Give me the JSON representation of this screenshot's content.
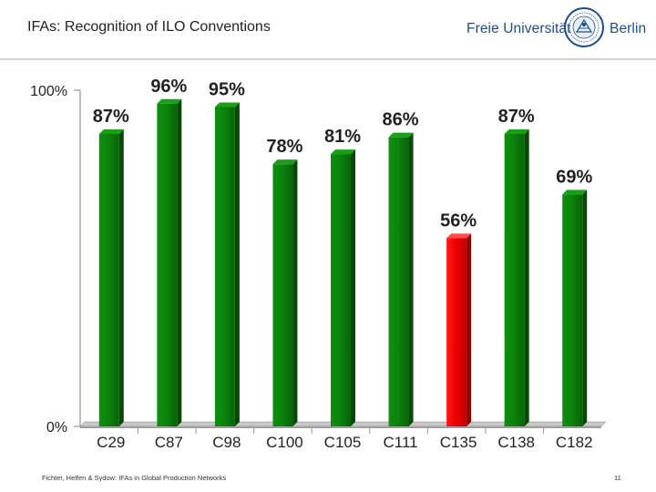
{
  "slide": {
    "title": "IFAs: Recognition of ILO Conventions",
    "footer": "Fichter, Helfen & Sydow: IFAs in Global Production Networks",
    "page_number": "11"
  },
  "logo": {
    "left_text": "Freie Universität",
    "right_text": "Berlin",
    "seal_icon": "university-seal-icon",
    "color": "#1b4d8c"
  },
  "colors": {
    "bar_default": "#0a7d0a",
    "bar_highlight": "#ee0000"
  },
  "chart_data": {
    "type": "bar",
    "title": "",
    "xlabel": "",
    "ylabel": "",
    "categories": [
      "C29",
      "C87",
      "C98",
      "C100",
      "C105",
      "C111",
      "C135",
      "C138",
      "C182"
    ],
    "values": [
      87,
      96,
      95,
      78,
      81,
      86,
      56,
      87,
      69
    ],
    "data_labels": [
      "87%",
      "96%",
      "95%",
      "78%",
      "81%",
      "86%",
      "56%",
      "87%",
      "69%"
    ],
    "highlight": [
      "C135"
    ],
    "y_ticks": [
      {
        "value": 0,
        "label": "0%"
      },
      {
        "value": 100,
        "label": "100%"
      }
    ],
    "ylim": [
      0,
      100
    ],
    "grid": false,
    "legend": "none"
  }
}
